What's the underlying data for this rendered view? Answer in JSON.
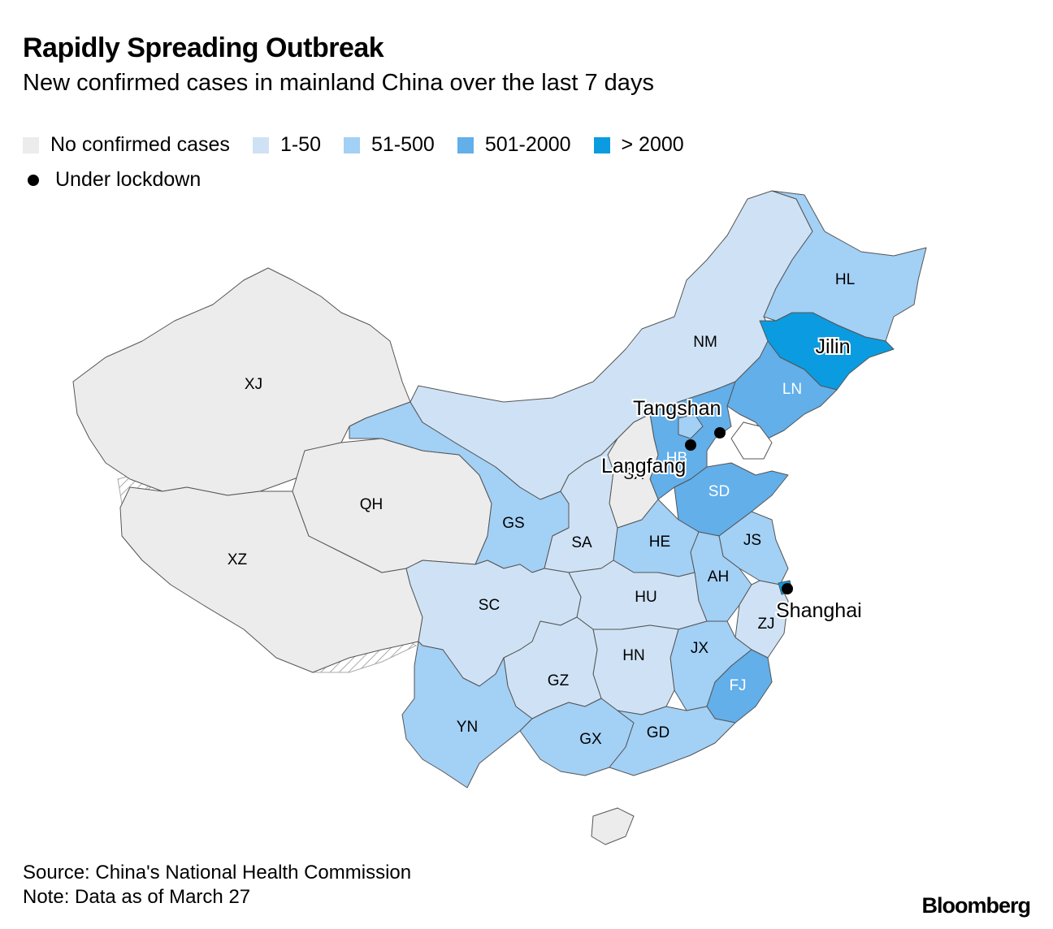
{
  "header": {
    "title": "Rapidly Spreading Outbreak",
    "subtitle": "New confirmed cases in mainland China over the last 7 days"
  },
  "legend": {
    "items": [
      {
        "label": "No confirmed cases",
        "color": "#ececec"
      },
      {
        "label": "1-50",
        "color": "#cfe2f5"
      },
      {
        "label": "51-500",
        "color": "#a3d0f5"
      },
      {
        "label": "501-2000",
        "color": "#62afea"
      },
      {
        "label": "> 2000",
        "color": "#0b9be0"
      }
    ],
    "lockdown_label": "Under lockdown"
  },
  "provinces": {
    "XJ": "XJ",
    "XZ": "XZ",
    "QH": "QH",
    "GS": "GS",
    "NM": "NM",
    "HL": "HL",
    "JL": "Jilin",
    "LN": "LN",
    "HB": "HB",
    "SX": "SX",
    "SD": "SD",
    "SA": "SA",
    "SC": "SC",
    "YN": "YN",
    "GZ": "GZ",
    "GX": "GX",
    "GD": "GD",
    "HN": "HN",
    "HU": "HU",
    "HE": "HE",
    "AH": "AH",
    "JS": "JS",
    "ZJ": "ZJ",
    "JX": "JX",
    "FJ": "FJ"
  },
  "cities": {
    "tangshan": "Tangshan",
    "langfang": "Langfang",
    "shanghai": "Shanghai"
  },
  "footer": {
    "source": "Source: China's National Health Commission",
    "note": "Note: Data as of March 27",
    "brand": "Bloomberg"
  }
}
